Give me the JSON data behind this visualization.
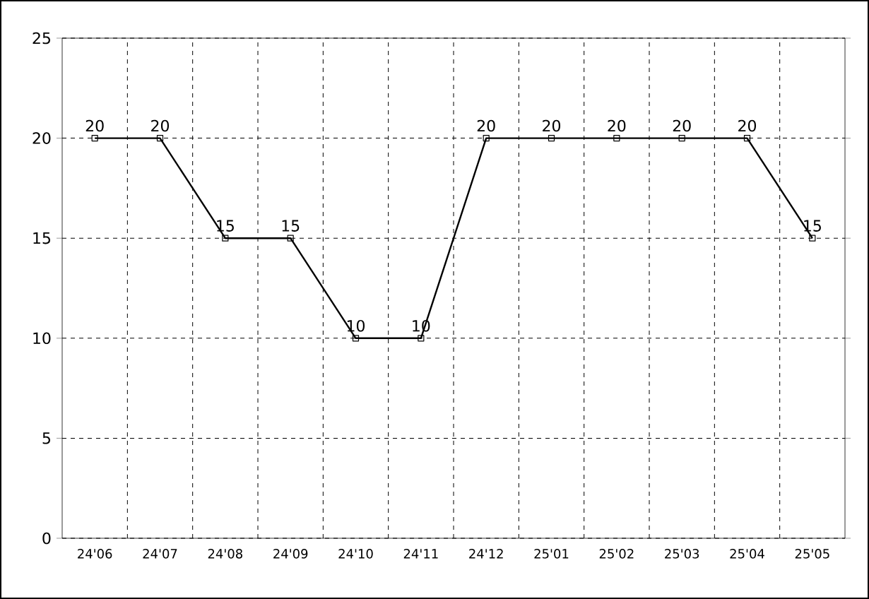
{
  "chart_data": {
    "type": "line",
    "categories": [
      "24'06",
      "24'07",
      "24'08",
      "24'09",
      "24'10",
      "24'11",
      "24'12",
      "25'01",
      "25'02",
      "25'03",
      "25'04",
      "25'05"
    ],
    "values": [
      20,
      20,
      15,
      15,
      10,
      10,
      20,
      20,
      20,
      20,
      20,
      15
    ],
    "color": "#000000",
    "ylim": [
      0,
      25
    ],
    "yticks": [
      0,
      5,
      10,
      15,
      20,
      25
    ],
    "grid": true,
    "marker": "square",
    "line_style": "solid",
    "data_labels": true
  }
}
